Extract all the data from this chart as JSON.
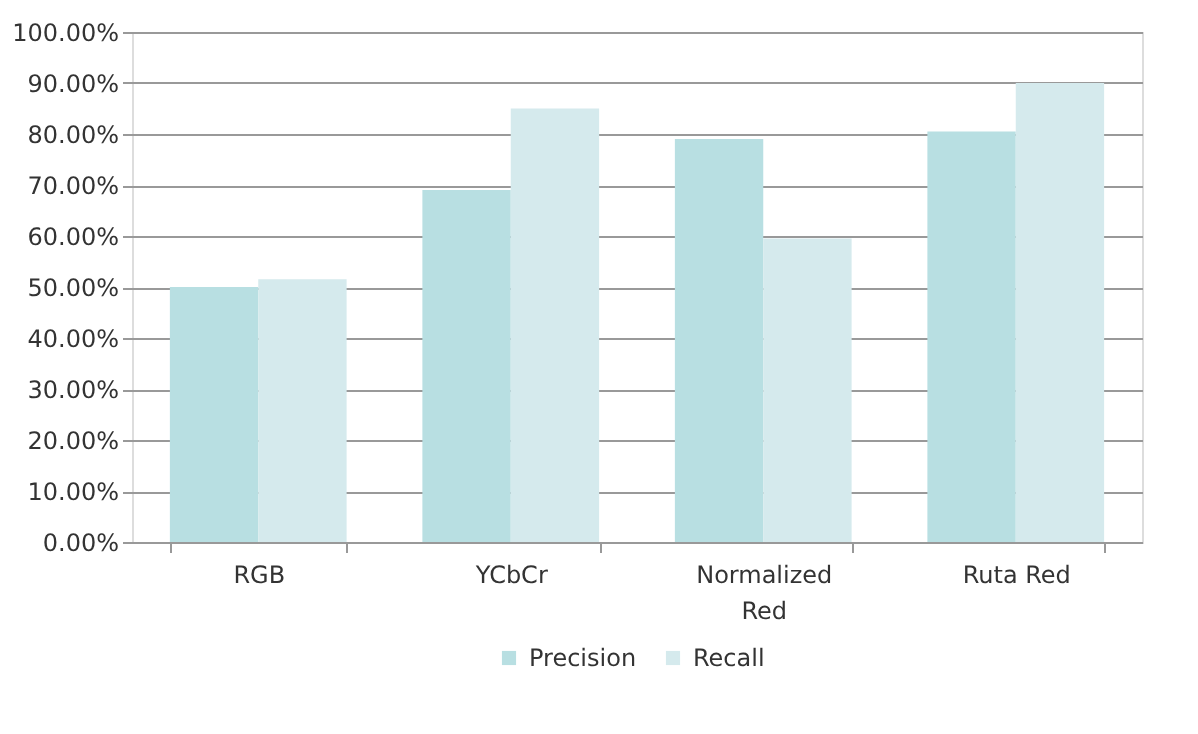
{
  "chart_data": {
    "type": "bar",
    "categories": [
      "RGB",
      "YCbCr",
      "Normalized\nRed",
      "Ruta Red"
    ],
    "series": [
      {
        "name": "Precision",
        "color": "#b8dfe2",
        "values": [
          50,
          69,
          79,
          80.5
        ]
      },
      {
        "name": "Recall",
        "color": "#d5eaed",
        "values": [
          51.5,
          85,
          59.5,
          90
        ]
      }
    ],
    "ylim": [
      0,
      100
    ],
    "yticks": [
      {
        "value": 0,
        "label": "0.00%"
      },
      {
        "value": 10,
        "label": "10.00%"
      },
      {
        "value": 20,
        "label": "20.00%"
      },
      {
        "value": 30,
        "label": "30.00%"
      },
      {
        "value": 40,
        "label": "40.00%"
      },
      {
        "value": 50,
        "label": "50.00%"
      },
      {
        "value": 60,
        "label": "60.00%"
      },
      {
        "value": 70,
        "label": "70.00%"
      },
      {
        "value": 80,
        "label": "80.00%"
      },
      {
        "value": 90,
        "label": "90.00%"
      },
      {
        "value": 100,
        "label": "100.00%"
      }
    ],
    "grid": "y",
    "legend": "bottom"
  }
}
